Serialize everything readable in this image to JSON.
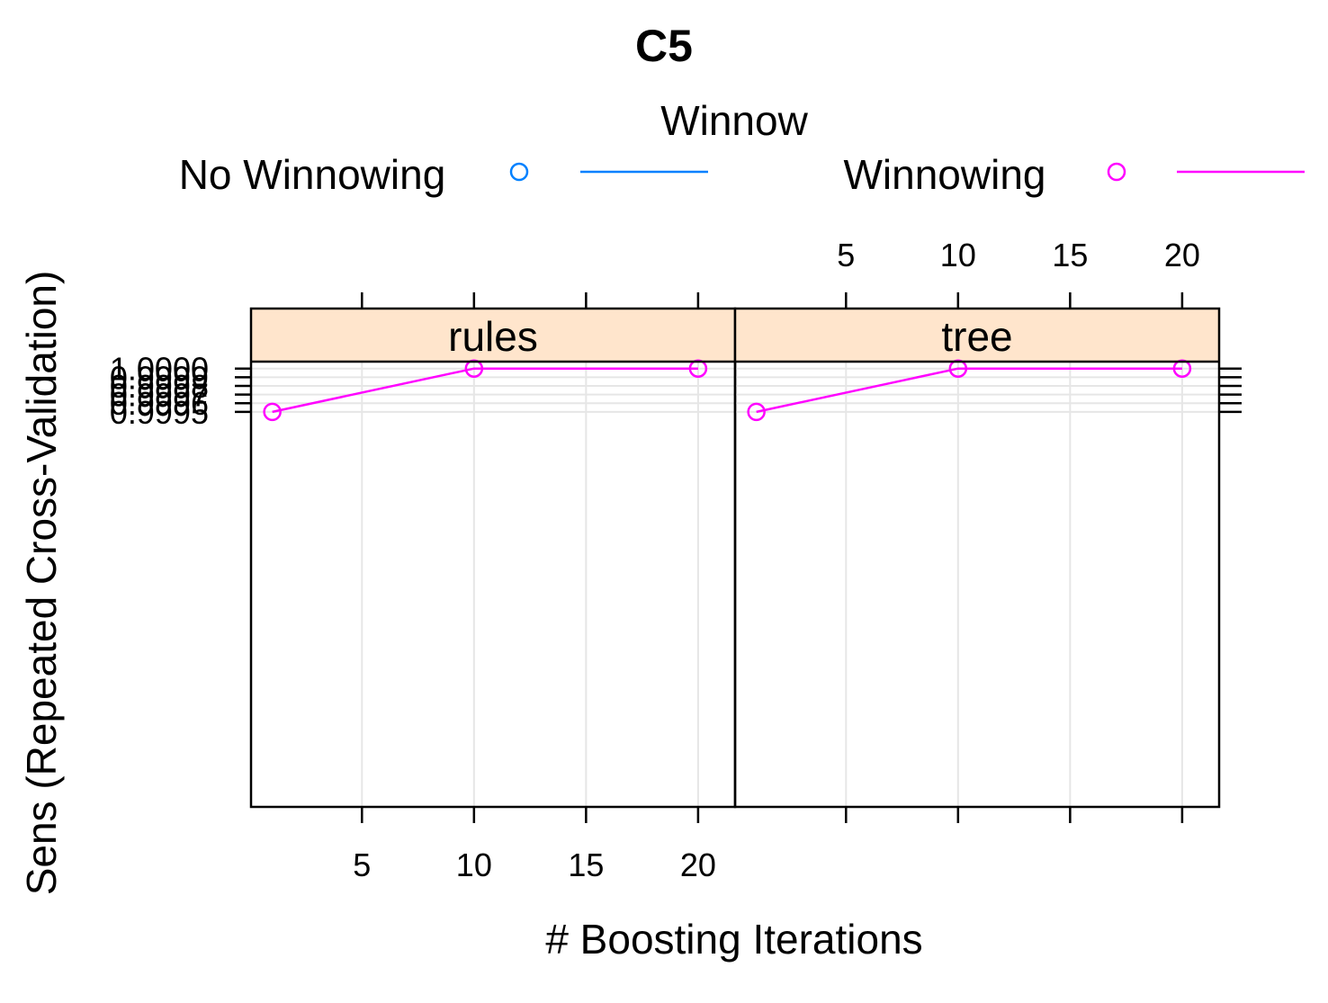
{
  "chart_data": {
    "type": "line",
    "title": "C5",
    "xlabel": "# Boosting Iterations",
    "ylabel": "Sens (Repeated Cross-Validation)",
    "legend": {
      "title": "Winnow",
      "placement": "top",
      "entries": [
        {
          "name": "No Winnowing",
          "color": "#0080ff"
        },
        {
          "name": "Winnowing",
          "color": "#ff00ff"
        }
      ]
    },
    "xlim": [
      0.05,
      21.65
    ],
    "ylim": [
      0.99494,
      1.00008
    ],
    "x_ticks": [
      5,
      10,
      15,
      20
    ],
    "x_tick_labels": [
      "5",
      "10",
      "15",
      "20"
    ],
    "y_ticks": [
      0.9995,
      0.9996,
      0.9997,
      0.9998,
      0.9999,
      1.0
    ],
    "y_tick_labels": [
      "0.9995",
      "0.9996",
      "0.9997",
      "0.9998",
      "0.9999",
      "1.0000"
    ],
    "grid": true,
    "strip_color": "#ffe5cc",
    "panels": [
      {
        "strip": "rules",
        "series": [
          {
            "name": "Winnowing",
            "color": "#ff00ff",
            "x": [
              1,
              10,
              20
            ],
            "y": [
              0.9995,
              1.0,
              1.0
            ]
          }
        ]
      },
      {
        "strip": "tree",
        "series": [
          {
            "name": "Winnowing",
            "color": "#ff00ff",
            "x": [
              1,
              10,
              20
            ],
            "y": [
              0.9995,
              1.0,
              1.0
            ]
          }
        ]
      }
    ]
  }
}
